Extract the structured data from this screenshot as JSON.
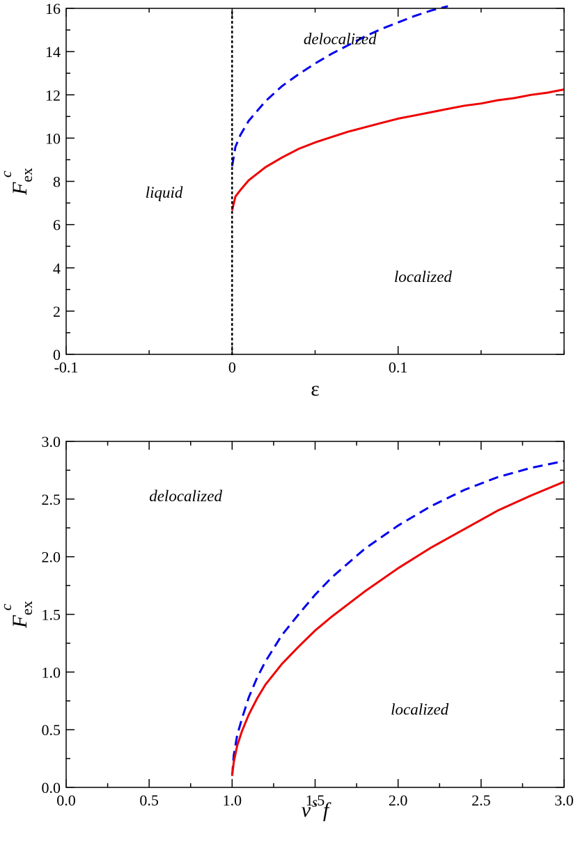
{
  "chart_data": [
    {
      "type": "line",
      "xlabel": "ε",
      "ylabel": {
        "base": "F",
        "sub": "ex",
        "sup": "c"
      },
      "xlim": [
        -0.1,
        0.2
      ],
      "ylim": [
        0,
        16
      ],
      "xticks": [
        {
          "v": -0.1,
          "label": "-0.1"
        },
        {
          "v": 0,
          "label": "0"
        },
        {
          "v": 0.1,
          "label": "0.1"
        }
      ],
      "yticks": [
        {
          "v": 0,
          "label": "0"
        },
        {
          "v": 2,
          "label": "2"
        },
        {
          "v": 4,
          "label": "4"
        },
        {
          "v": 6,
          "label": "6"
        },
        {
          "v": 8,
          "label": "8"
        },
        {
          "v": 10,
          "label": "10"
        },
        {
          "v": 12,
          "label": "12"
        },
        {
          "v": 14,
          "label": "14"
        },
        {
          "v": 16,
          "label": "16"
        }
      ],
      "grid": false,
      "annotations": [
        {
          "text": "delocalized",
          "x": 0.065,
          "y": 14.6
        },
        {
          "text": "liquid",
          "x": -0.041,
          "y": 7.5
        },
        {
          "text": "localized",
          "x": 0.115,
          "y": 3.6
        }
      ],
      "series": [
        {
          "style": "dashed",
          "color": "#0000ee",
          "x": [
            0,
            0.002,
            0.005,
            0.01,
            0.02,
            0.03,
            0.04,
            0.05,
            0.06,
            0.07,
            0.08,
            0.09,
            0.1,
            0.11,
            0.12,
            0.13
          ],
          "y": [
            8.7,
            9.6,
            10.15,
            10.8,
            11.7,
            12.4,
            12.95,
            13.45,
            13.9,
            14.3,
            14.7,
            15.05,
            15.35,
            15.65,
            15.9,
            16.1
          ]
        },
        {
          "style": "solid",
          "color": "#ee0000",
          "x": [
            0,
            0.002,
            0.005,
            0.01,
            0.02,
            0.03,
            0.04,
            0.05,
            0.06,
            0.07,
            0.08,
            0.09,
            0.1,
            0.11,
            0.12,
            0.13,
            0.14,
            0.15,
            0.16,
            0.17,
            0.18,
            0.19,
            0.2
          ],
          "y": [
            6.65,
            7.3,
            7.6,
            8.05,
            8.65,
            9.1,
            9.5,
            9.8,
            10.05,
            10.3,
            10.5,
            10.7,
            10.9,
            11.05,
            11.2,
            11.35,
            11.5,
            11.6,
            11.75,
            11.85,
            12.0,
            12.1,
            12.25
          ]
        },
        {
          "style": "dotted",
          "color": "#000000",
          "x": [
            0,
            0
          ],
          "y": [
            0,
            16
          ]
        }
      ]
    },
    {
      "type": "line",
      "xlabel": {
        "base": "v",
        "sup": "s",
        "tail": "f"
      },
      "ylabel": {
        "base": "F",
        "sub": "ex",
        "sup": "c"
      },
      "xlim": [
        0,
        3
      ],
      "ylim": [
        0,
        3
      ],
      "xticks": [
        {
          "v": 0,
          "label": "0.0"
        },
        {
          "v": 0.5,
          "label": "0.5"
        },
        {
          "v": 1,
          "label": "1.0"
        },
        {
          "v": 1.5,
          "label": "1.5"
        },
        {
          "v": 2,
          "label": "2.0"
        },
        {
          "v": 2.5,
          "label": "2.5"
        },
        {
          "v": 3,
          "label": "3.0"
        }
      ],
      "yticks": [
        {
          "v": 0,
          "label": "0.0"
        },
        {
          "v": 0.5,
          "label": "0.5"
        },
        {
          "v": 1,
          "label": "1.0"
        },
        {
          "v": 1.5,
          "label": "1.5"
        },
        {
          "v": 2,
          "label": "2.0"
        },
        {
          "v": 2.5,
          "label": "2.5"
        },
        {
          "v": 3,
          "label": "3.0"
        }
      ],
      "grid": false,
      "annotations": [
        {
          "text": "delocalized",
          "x": 0.72,
          "y": 2.53
        },
        {
          "text": "localized",
          "x": 2.13,
          "y": 0.68
        }
      ],
      "series": [
        {
          "style": "dashed",
          "color": "#0000ee",
          "x": [
            1.0,
            1.01,
            1.03,
            1.06,
            1.1,
            1.15,
            1.2,
            1.3,
            1.4,
            1.5,
            1.6,
            1.8,
            2.0,
            2.2,
            2.4,
            2.6,
            2.8,
            3.0
          ],
          "y": [
            0.1,
            0.28,
            0.45,
            0.6,
            0.78,
            0.95,
            1.09,
            1.32,
            1.5,
            1.67,
            1.82,
            2.07,
            2.27,
            2.44,
            2.58,
            2.69,
            2.77,
            2.83
          ]
        },
        {
          "style": "solid",
          "color": "#ee0000",
          "x": [
            1.0,
            1.01,
            1.03,
            1.06,
            1.1,
            1.15,
            1.2,
            1.3,
            1.4,
            1.5,
            1.6,
            1.8,
            2.0,
            2.2,
            2.4,
            2.6,
            2.8,
            3.0
          ],
          "y": [
            0.1,
            0.22,
            0.36,
            0.49,
            0.63,
            0.77,
            0.89,
            1.07,
            1.22,
            1.36,
            1.48,
            1.7,
            1.9,
            2.08,
            2.24,
            2.4,
            2.53,
            2.65
          ]
        }
      ]
    }
  ]
}
